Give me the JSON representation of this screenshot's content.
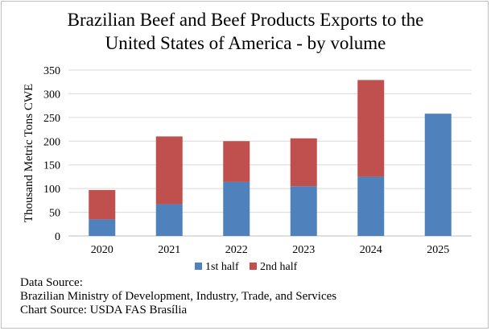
{
  "chart_data": {
    "type": "bar",
    "stacked": true,
    "title_lines": [
      "Brazilian Beef and Beef Products Exports to the",
      "United States of America - by volume"
    ],
    "xlabel": "",
    "ylabel": "Thousand Metric Tons CWE",
    "ylim": [
      0,
      350
    ],
    "yticks": [
      0,
      50,
      100,
      150,
      200,
      250,
      300,
      350
    ],
    "grid": true,
    "legend_position": "bottom",
    "categories": [
      "2020",
      "2021",
      "2022",
      "2023",
      "2024",
      "2025"
    ],
    "series": [
      {
        "name": "1st half",
        "color": "#4f81bd",
        "values": [
          35,
          67,
          114,
          105,
          125,
          258
        ]
      },
      {
        "name": "2nd half",
        "color": "#c0504d",
        "values": [
          62,
          143,
          86,
          101,
          204,
          0
        ]
      }
    ]
  },
  "source": {
    "lines": [
      "Data Source:",
      "Brazilian Ministry of Development, Industry, Trade, and Services",
      "Chart Source: USDA FAS Brasília"
    ]
  }
}
